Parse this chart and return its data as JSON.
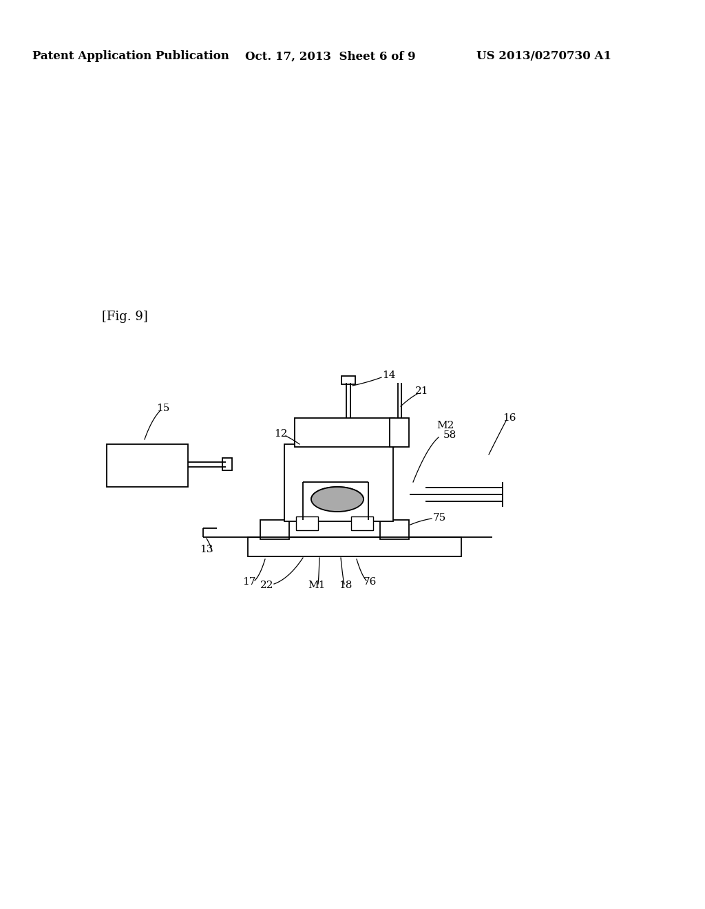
{
  "bg_color": "#ffffff",
  "line_color": "#000000",
  "header_left": "Patent Application Publication",
  "header_mid": "Oct. 17, 2013  Sheet 6 of 9",
  "header_right": "US 2013/0270730 A1",
  "fig_label": "[Fig. 9]"
}
